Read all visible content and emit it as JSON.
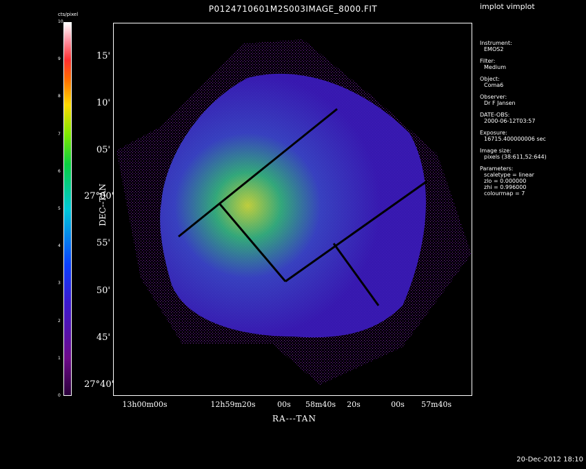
{
  "window": {
    "title": "P0124710601M2S003IMAGE_8000.FIT",
    "program": "implot vimplot",
    "timestamp": "20-Dec-2012 18:10"
  },
  "colorbar": {
    "label": "cts/pixel",
    "ticks": [
      "0",
      "1",
      "2",
      "3",
      "4",
      "5",
      "6",
      "7",
      "8",
      "9",
      "10"
    ]
  },
  "axes": {
    "ylabel": "DEC--TAN",
    "xlabel": "RA---TAN",
    "y_ticks": [
      "15'",
      "10'",
      "05'",
      "27°00'",
      "55'",
      "50'",
      "45'",
      "27°40'"
    ],
    "x_ticks": [
      "13h00m00s",
      "12h59m20s",
      "00s",
      "58m40s",
      "20s",
      "00s",
      "57m40s"
    ]
  },
  "info": {
    "instrument_label": "Instrument:",
    "instrument": "EMOS2",
    "filter_label": "Filter:",
    "filter": "Medium",
    "object_label": "Object:",
    "object": "Coma6",
    "observer_label": "Observer:",
    "observer": "Dr F Jansen",
    "date_label": "DATE-OBS:",
    "date": "2000-06-12T03:57",
    "exposure_label": "Exposure:",
    "exposure": "16715.400000006 sec",
    "image_size_label": "Image size:",
    "image_size": "pixels (38:611,52:644)",
    "params_label": "Parameters:",
    "scaletype": "scaletype = linear",
    "zlo": "zlo = 0.000000",
    "zhi": "zhi = 0.996000",
    "colourmap": "colourmap = 7"
  },
  "colors": {
    "background": "#000000",
    "foreground": "#ffffff"
  }
}
